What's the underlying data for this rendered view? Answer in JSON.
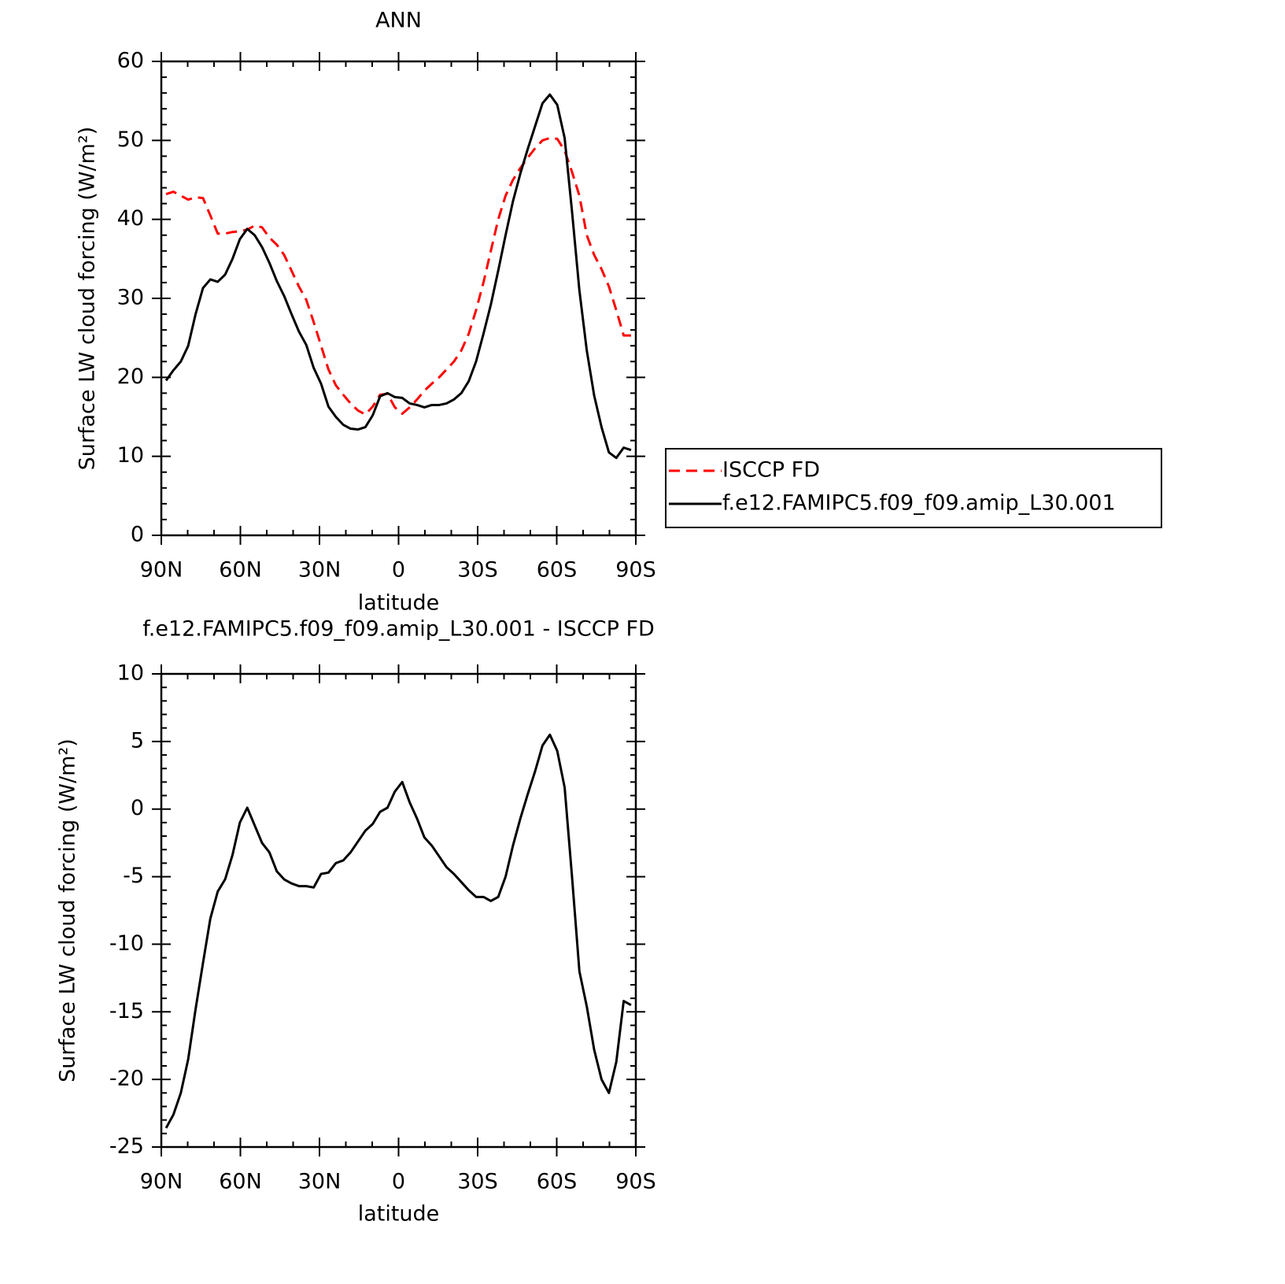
{
  "chart_data": [
    {
      "type": "line",
      "title": "ANN",
      "xlabel": "latitude",
      "ylabel": "Surface LW cloud forcing (W/m²)",
      "x": [
        88.2,
        85.4,
        82.6,
        79.8,
        77,
        74.2,
        71.4,
        68.6,
        65.8,
        63,
        60.2,
        57.4,
        54.6,
        51.8,
        49,
        46.2,
        43.4,
        40.6,
        37.8,
        35,
        32.2,
        29.4,
        26.6,
        23.8,
        21,
        18.2,
        15.4,
        12.6,
        9.8,
        7,
        4.2,
        1.4,
        -1.4,
        -4.2,
        -7,
        -9.8,
        -12.6,
        -15.4,
        -18.2,
        -21,
        -23.8,
        -26.6,
        -29.4,
        -32.2,
        -35,
        -37.8,
        -40.6,
        -43.4,
        -46.2,
        -49,
        -51.8,
        -54.6,
        -57.4,
        -60.2,
        -63,
        -65.8,
        -68.6,
        -71.4,
        -74.2,
        -77,
        -79.8,
        -82.6,
        -85.4,
        -88.2
      ],
      "series": [
        {
          "name": "ISCCP FD",
          "color": "#ff0000",
          "dashed": true,
          "values": [
            43.2,
            43.5,
            43,
            42.5,
            42.8,
            42.7,
            40.5,
            38.2,
            38.2,
            38.4,
            38.5,
            38.7,
            39.2,
            39,
            37.7,
            36.8,
            35.5,
            33.5,
            31.5,
            29.8,
            27,
            24,
            21,
            19,
            17.8,
            16.7,
            15.8,
            15.3,
            16.3,
            17.8,
            17.9,
            16.2,
            15.4,
            16.2,
            17.2,
            18.3,
            19.2,
            20,
            21,
            22,
            23.4,
            25.5,
            28.5,
            32,
            36,
            40,
            43,
            45,
            46.5,
            47.8,
            49,
            50,
            50.3,
            50.2,
            48.7,
            46,
            43,
            38,
            35.5,
            33.7,
            31.5,
            28.5,
            25.3,
            25.3
          ]
        },
        {
          "name": "f.e12.FAMIPC5.f09_f09.amip_L30.001",
          "color": "#000000",
          "dashed": false,
          "values": [
            19.6,
            20.9,
            22,
            24,
            28,
            31.3,
            32.4,
            32.1,
            33,
            35,
            37.5,
            38.8,
            38,
            36.5,
            34.5,
            32.2,
            30.3,
            28,
            25.8,
            24.1,
            21.2,
            19.2,
            16.3,
            15,
            14,
            13.5,
            13.4,
            13.7,
            15.2,
            17.6,
            18,
            17.5,
            17.4,
            16.7,
            16.5,
            16.2,
            16.5,
            16.5,
            16.7,
            17.2,
            18,
            19.5,
            22,
            25.5,
            29.2,
            33.5,
            38,
            42.3,
            45.8,
            48.9,
            51.8,
            54.7,
            55.8,
            54.5,
            50.3,
            41,
            31,
            23.4,
            17.7,
            13.7,
            10.5,
            9.8,
            11.1,
            10.8
          ]
        }
      ],
      "xlim": [
        90,
        -90
      ],
      "xticks": [
        {
          "value": 90,
          "label": "90N"
        },
        {
          "value": 60,
          "label": "60N"
        },
        {
          "value": 30,
          "label": "30N"
        },
        0,
        {
          "value": -30,
          "label": "30S"
        },
        {
          "value": -60,
          "label": "60S"
        },
        {
          "value": -90,
          "label": "90S"
        }
      ],
      "ylim": [
        0,
        60
      ],
      "yticks": [
        0,
        10,
        20,
        30,
        40,
        50,
        60
      ],
      "legend": "right"
    },
    {
      "type": "line",
      "title": "f.e12.FAMIPC5.f09_f09.amip_L30.001 - ISCCP FD",
      "xlabel": "latitude",
      "ylabel": "Surface LW cloud forcing (W/m²)",
      "x": [
        88.2,
        85.4,
        82.6,
        79.8,
        77,
        74.2,
        71.4,
        68.6,
        65.8,
        63,
        60.2,
        57.4,
        54.6,
        51.8,
        49,
        46.2,
        43.4,
        40.6,
        37.8,
        35,
        32.2,
        29.4,
        26.6,
        23.8,
        21,
        18.2,
        15.4,
        12.6,
        9.8,
        7,
        4.2,
        1.4,
        -1.4,
        -4.2,
        -7,
        -9.8,
        -12.6,
        -15.4,
        -18.2,
        -21,
        -23.8,
        -26.6,
        -29.4,
        -32.2,
        -35,
        -37.8,
        -40.6,
        -43.4,
        -46.2,
        -49,
        -51.8,
        -54.6,
        -57.4,
        -60.2,
        -63,
        -65.8,
        -68.6,
        -71.4,
        -74.2,
        -77,
        -79.8,
        -82.6,
        -85.4,
        -88.2
      ],
      "values": [
        -23.6,
        -22.6,
        -21,
        -18.5,
        -14.8,
        -11.4,
        -8.1,
        -6.1,
        -5.2,
        -3.4,
        -1,
        0.1,
        -1.2,
        -2.5,
        -3.2,
        -4.6,
        -5.2,
        -5.5,
        -5.7,
        -5.7,
        -5.8,
        -4.8,
        -4.7,
        -4,
        -3.8,
        -3.2,
        -2.4,
        -1.6,
        -1.1,
        -0.2,
        0.1,
        1.3,
        2,
        0.5,
        -0.7,
        -2.1,
        -2.7,
        -3.5,
        -4.3,
        -4.8,
        -5.4,
        -6,
        -6.5,
        -6.5,
        -6.8,
        -6.5,
        -5,
        -2.7,
        -0.7,
        1.1,
        2.8,
        4.7,
        5.5,
        4.3,
        1.6,
        -5,
        -12,
        -14.6,
        -17.8,
        -20,
        -21,
        -18.7,
        -14.2,
        -14.5
      ],
      "color": "#000000",
      "xlim": [
        90,
        -90
      ],
      "xticks": [
        {
          "value": 90,
          "label": "90N"
        },
        {
          "value": 60,
          "label": "60N"
        },
        {
          "value": 30,
          "label": "30N"
        },
        0,
        {
          "value": -30,
          "label": "30S"
        },
        {
          "value": -60,
          "label": "60S"
        },
        {
          "value": -90,
          "label": "90S"
        }
      ],
      "ylim": [
        -25,
        10
      ],
      "yticks": [
        -25,
        -20,
        -15,
        -10,
        -5,
        0,
        5,
        10
      ]
    }
  ]
}
